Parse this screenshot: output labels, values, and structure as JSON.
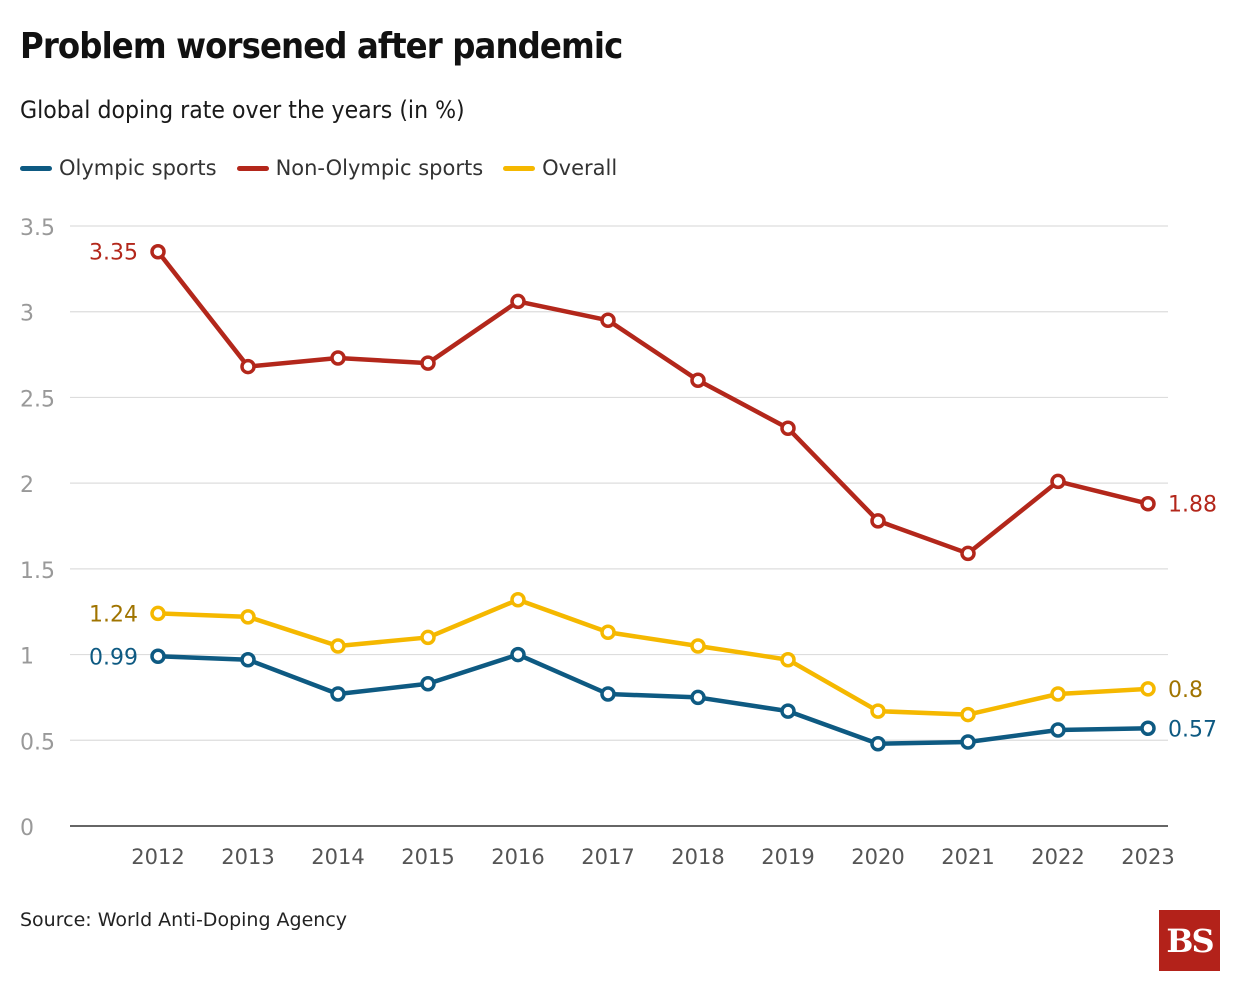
{
  "header": {
    "title": "Problem worsened after pandemic",
    "subtitle": "Global doping rate over the years (in %)"
  },
  "legend": [
    {
      "label": "Olympic sports",
      "color": "#0e5a82"
    },
    {
      "label": "Non-Olympic sports",
      "color": "#b3271b"
    },
    {
      "label": "Overall",
      "color": "#f5b800"
    }
  ],
  "chart_data": {
    "type": "line",
    "title": "Problem worsened after pandemic",
    "subtitle": "Global doping rate over the years (in %)",
    "xlabel": "",
    "ylabel": "",
    "categories": [
      "2012",
      "2013",
      "2014",
      "2015",
      "2016",
      "2017",
      "2018",
      "2019",
      "2020",
      "2021",
      "2022",
      "2023"
    ],
    "ylim": [
      0,
      3.5
    ],
    "yticks": [
      "0",
      "0.5",
      "1",
      "1.5",
      "2",
      "2.5",
      "3",
      "3.5"
    ],
    "grid": true,
    "legend_position": "top-left",
    "series": [
      {
        "name": "Olympic sports",
        "color": "#0e5a82",
        "label_color": "#0e5a82",
        "values": [
          0.99,
          0.97,
          0.77,
          0.83,
          1.0,
          0.77,
          0.75,
          0.67,
          0.48,
          0.49,
          0.56,
          0.57
        ],
        "start_label": "0.99",
        "end_label": "0.57"
      },
      {
        "name": "Non-Olympic sports",
        "color": "#b3271b",
        "label_color": "#b3271b",
        "values": [
          3.35,
          2.68,
          2.73,
          2.7,
          3.06,
          2.95,
          2.6,
          2.32,
          1.78,
          1.59,
          2.01,
          1.88
        ],
        "start_label": "3.35",
        "end_label": "1.88"
      },
      {
        "name": "Overall",
        "color": "#f5b800",
        "label_color": "#a07400",
        "values": [
          1.24,
          1.22,
          1.05,
          1.1,
          1.32,
          1.13,
          1.05,
          0.97,
          0.67,
          0.65,
          0.77,
          0.8
        ],
        "start_label": "1.24",
        "end_label": "0.8"
      }
    ]
  },
  "footer": {
    "source": "Source: World Anti-Doping Agency",
    "logo_text": "BS"
  }
}
